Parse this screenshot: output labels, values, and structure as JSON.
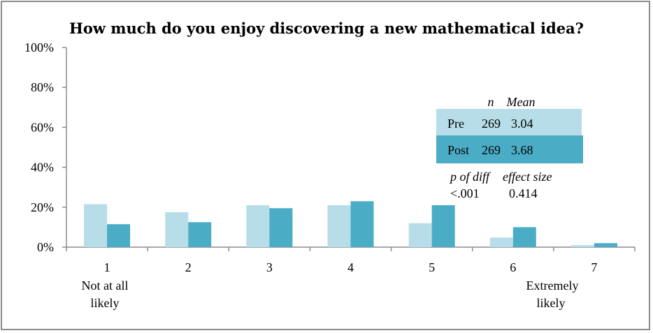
{
  "chart_data": {
    "type": "bar",
    "title": "How much do you enjoy discovering a new mathematical idea?",
    "categories": [
      "1",
      "2",
      "3",
      "4",
      "5",
      "6",
      "7"
    ],
    "category_sublabels": {
      "low": [
        "Not at all",
        "likely"
      ],
      "high": [
        "Extremely",
        "likely"
      ]
    },
    "series": [
      {
        "name": "Pre",
        "color": "#b7dde8",
        "values": [
          21.5,
          17.5,
          21,
          21,
          12,
          4.8,
          1
        ]
      },
      {
        "name": "Post",
        "color": "#4bacc6",
        "values": [
          11.5,
          12.5,
          19.5,
          23,
          21,
          10,
          2
        ]
      }
    ],
    "y_ticks": [
      "0%",
      "20%",
      "40%",
      "60%",
      "80%",
      "100%"
    ],
    "ylim": [
      0,
      100
    ],
    "y_unit": "%",
    "grid": false,
    "stats_table": {
      "header_n": "n",
      "header_mean": "Mean",
      "rows": [
        {
          "label": "Pre",
          "n": "269",
          "mean": "3.04",
          "color": "#b7dde8"
        },
        {
          "label": "Post",
          "n": "269",
          "mean": "3.68",
          "color": "#4bacc6"
        }
      ],
      "p_label": "p of diff",
      "p_value": "<.001",
      "effect_label": "effect size",
      "effect_value": "0.414"
    }
  }
}
